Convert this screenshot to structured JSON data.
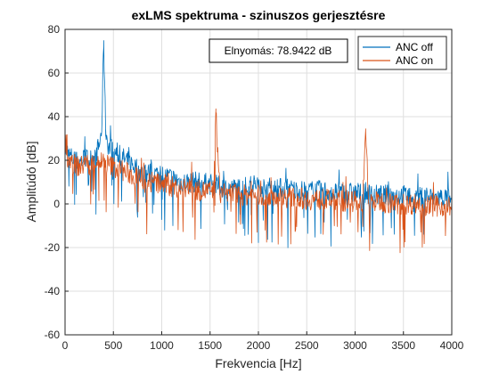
{
  "chart_data": {
    "type": "line",
    "title": "exLMS spektruma - szinuszos gerjesztésre",
    "xlabel": "Frekvencia [Hz]",
    "ylabel": "Amplitúdó [dB]",
    "xlim": [
      0,
      4000
    ],
    "ylim": [
      -60,
      80
    ],
    "xticks": [
      0,
      500,
      1000,
      1500,
      2000,
      2500,
      3000,
      3500,
      4000
    ],
    "yticks": [
      -60,
      -40,
      -20,
      0,
      20,
      40,
      60,
      80
    ],
    "grid": true,
    "legend_position": "top-right",
    "annotation": "Elnyomás: 78.9422 dB",
    "series": [
      {
        "name": "ANC off",
        "color": "#0072BD",
        "x": [
          0,
          50,
          100,
          150,
          200,
          250,
          300,
          350,
          380,
          400,
          420,
          450,
          500,
          600,
          700,
          800,
          900,
          1000,
          1100,
          1200,
          1300,
          1400,
          1500,
          1600,
          1700,
          1800,
          1900,
          1960,
          2000,
          2040,
          2100,
          2200,
          2300,
          2400,
          2500,
          2600,
          2700,
          2800,
          2900,
          3000,
          3100,
          3130,
          3160,
          3200,
          3300,
          3400,
          3500,
          3600,
          3700,
          3800,
          3900,
          4000
        ],
        "values": [
          25,
          22,
          20,
          19,
          21,
          20,
          22,
          26,
          34,
          75,
          34,
          26,
          24,
          21,
          18,
          14,
          14,
          13,
          12,
          10,
          10,
          10,
          9,
          8,
          7,
          7,
          8,
          9,
          9,
          8,
          7,
          7,
          7,
          6,
          6,
          6,
          6,
          5,
          5,
          5,
          5,
          5,
          4,
          4,
          4,
          4,
          4,
          3,
          3,
          3,
          3,
          2
        ]
      },
      {
        "name": "ANC on",
        "color": "#D95319",
        "x": [
          0,
          50,
          100,
          150,
          200,
          250,
          300,
          350,
          400,
          450,
          500,
          600,
          700,
          800,
          900,
          1000,
          1100,
          1200,
          1300,
          1400,
          1500,
          1540,
          1560,
          1600,
          1700,
          1800,
          1900,
          2000,
          2100,
          2200,
          2300,
          2400,
          2500,
          2600,
          2700,
          2800,
          2900,
          3000,
          3080,
          3110,
          3140,
          3200,
          3300,
          3400,
          3500,
          3600,
          3700,
          3800,
          3900,
          4000
        ],
        "values": [
          24,
          20,
          18,
          17,
          18,
          18,
          19,
          20,
          19,
          18,
          17,
          15,
          13,
          11,
          10,
          9,
          8,
          7,
          7,
          6,
          6,
          6,
          42,
          5,
          5,
          4,
          4,
          4,
          4,
          3,
          3,
          3,
          2,
          2,
          2,
          2,
          1,
          1,
          1,
          33,
          1,
          1,
          1,
          0,
          0,
          0,
          0,
          -1,
          -1,
          -1
        ]
      }
    ]
  }
}
